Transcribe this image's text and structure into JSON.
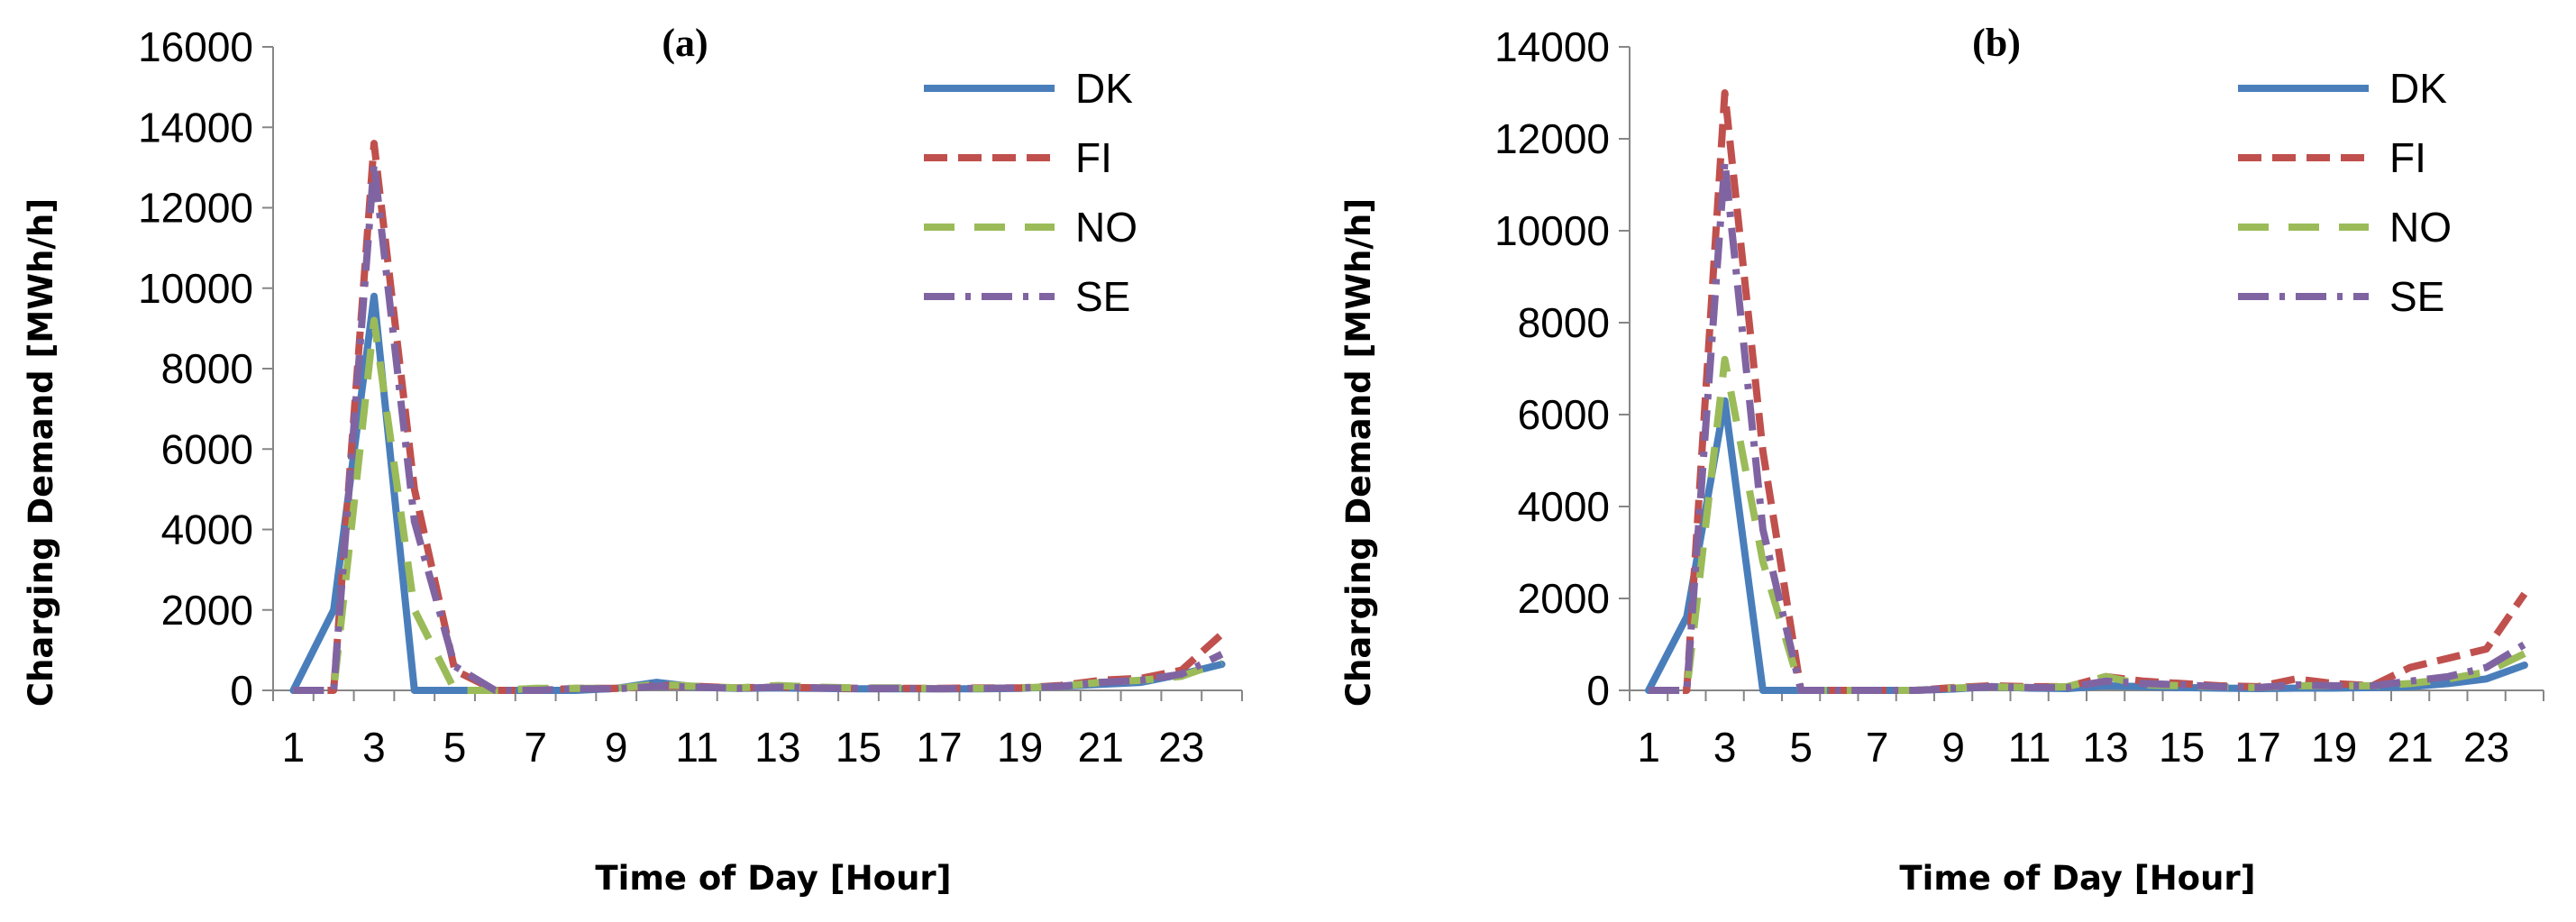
{
  "chart_data": [
    {
      "type": "line",
      "title": "(a)",
      "xlabel": "Time of Day [Hour]",
      "ylabel": "Charging Demand [MWh/h]",
      "ylim": [
        0,
        16000
      ],
      "yticks": [
        0,
        2000,
        4000,
        6000,
        8000,
        10000,
        12000,
        14000,
        16000
      ],
      "xticks": [
        1,
        3,
        5,
        7,
        9,
        11,
        13,
        15,
        17,
        19,
        21,
        23
      ],
      "x": [
        1,
        2,
        3,
        4,
        5,
        6,
        7,
        8,
        9,
        10,
        11,
        12,
        13,
        14,
        15,
        16,
        17,
        18,
        19,
        20,
        21,
        22,
        23,
        24
      ],
      "legend_position": "top-right",
      "series": [
        {
          "name": "DK",
          "color": "#4a7ebb",
          "style": "solid",
          "values": [
            0,
            2000,
            9800,
            0,
            0,
            0,
            0,
            0,
            50,
            200,
            80,
            50,
            60,
            50,
            40,
            40,
            40,
            40,
            50,
            100,
            150,
            200,
            400,
            650
          ]
        },
        {
          "name": "FI",
          "color": "#c0504d",
          "style": "dash",
          "values": [
            0,
            0,
            13600,
            5000,
            500,
            0,
            0,
            50,
            50,
            120,
            100,
            60,
            80,
            60,
            50,
            50,
            50,
            60,
            60,
            120,
            250,
            300,
            500,
            1400
          ]
        },
        {
          "name": "NO",
          "color": "#9bbb59",
          "style": "longdash",
          "values": [
            0,
            0,
            9200,
            2000,
            0,
            0,
            50,
            50,
            50,
            150,
            100,
            60,
            120,
            80,
            60,
            60,
            40,
            50,
            60,
            100,
            200,
            250,
            350,
            700
          ]
        },
        {
          "name": "SE",
          "color": "#8064a2",
          "style": "dashdot",
          "values": [
            0,
            0,
            13100,
            4200,
            600,
            0,
            0,
            40,
            40,
            100,
            80,
            50,
            80,
            60,
            50,
            50,
            40,
            50,
            60,
            100,
            200,
            250,
            400,
            900
          ]
        }
      ]
    },
    {
      "type": "line",
      "title": "(b)",
      "xlabel": "Time of Day [Hour]",
      "ylabel": "Charging Demand [MWh/h]",
      "ylim": [
        0,
        14000
      ],
      "yticks": [
        0,
        2000,
        4000,
        6000,
        8000,
        10000,
        12000,
        14000
      ],
      "xticks": [
        1,
        3,
        5,
        7,
        9,
        11,
        13,
        15,
        17,
        19,
        21,
        23
      ],
      "x": [
        1,
        2,
        3,
        4,
        5,
        6,
        7,
        8,
        9,
        10,
        11,
        12,
        13,
        14,
        15,
        16,
        17,
        18,
        19,
        20,
        21,
        22,
        23,
        24
      ],
      "legend_position": "top-right",
      "series": [
        {
          "name": "DK",
          "color": "#4a7ebb",
          "style": "solid",
          "values": [
            0,
            1600,
            6300,
            0,
            0,
            0,
            0,
            0,
            30,
            80,
            50,
            40,
            100,
            80,
            60,
            50,
            40,
            50,
            50,
            60,
            80,
            150,
            250,
            550
          ]
        },
        {
          "name": "FI",
          "color": "#c0504d",
          "style": "dash",
          "values": [
            0,
            0,
            13000,
            5200,
            0,
            0,
            0,
            0,
            60,
            100,
            80,
            80,
            300,
            200,
            150,
            100,
            80,
            250,
            150,
            100,
            500,
            700,
            900,
            2100
          ]
        },
        {
          "name": "NO",
          "color": "#9bbb59",
          "style": "longdash",
          "values": [
            0,
            0,
            7200,
            2800,
            0,
            0,
            0,
            0,
            50,
            80,
            60,
            80,
            300,
            120,
            100,
            80,
            60,
            100,
            100,
            100,
            150,
            250,
            400,
            800
          ]
        },
        {
          "name": "SE",
          "color": "#8064a2",
          "style": "dashdot",
          "values": [
            0,
            0,
            11500,
            3500,
            0,
            0,
            0,
            0,
            40,
            80,
            60,
            60,
            200,
            150,
            120,
            80,
            60,
            120,
            100,
            100,
            200,
            300,
            500,
            1000
          ]
        }
      ]
    }
  ]
}
